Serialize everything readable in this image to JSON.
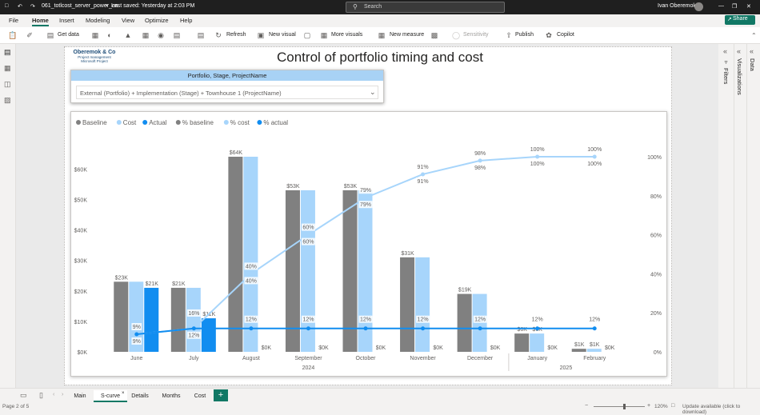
{
  "titlebar": {
    "filename": "061_totlcost_server_power_en",
    "saved": "Last saved: Yesterday at 2:03 PM",
    "search_placeholder": "Search",
    "user": "Ivan Oberemok"
  },
  "menu": [
    "File",
    "Home",
    "Insert",
    "Modeling",
    "View",
    "Optimize",
    "Help"
  ],
  "menu_active": "Home",
  "share_label": "Share",
  "ribbon": {
    "get_data": "Get data",
    "refresh": "Refresh",
    "new_visual": "New visual",
    "more_visuals": "More visuals",
    "new_measure": "New measure",
    "sensitivity": "Sensitivity",
    "publish": "Publish",
    "copilot": "Copilot"
  },
  "right_panes": {
    "filters": "Filters",
    "visualizations": "Visualizations",
    "data": "Data"
  },
  "logo": {
    "name": "Oberemok & Co",
    "line1": "Project management",
    "line2": "Microsoft Project"
  },
  "report_title": "Control of portfolio timing and cost",
  "slicer": {
    "header": "Portfolio, Stage, ProjectName",
    "value": "External (Portfolio) + Implementation (Stage) + Townhouse 1 (ProjectName)"
  },
  "tabs": [
    "Main",
    "S-curve",
    "Details",
    "Months",
    "Cost"
  ],
  "active_tab": "S-curve",
  "status": {
    "page": "Page 2 of 5",
    "zoom": "120%",
    "update": "Update available (click to download)"
  },
  "colors": {
    "baseline": "#808080",
    "cost": "#a7d5fb",
    "actual": "#118df0",
    "accent": "#117865"
  },
  "chart_data": {
    "type": "bar",
    "legend": [
      "Baseline",
      "Cost",
      "Actual",
      "% baseline",
      "% cost",
      "% actual"
    ],
    "categories": [
      "June",
      "July",
      "August",
      "September",
      "October",
      "November",
      "December",
      "January",
      "February"
    ],
    "year_groups": [
      {
        "label": "2024",
        "from": 0,
        "to": 6
      },
      {
        "label": "2025",
        "from": 7,
        "to": 8
      }
    ],
    "series": [
      {
        "name": "Baseline",
        "values": [
          23,
          21,
          64,
          53,
          53,
          31,
          19,
          6,
          1
        ],
        "labels": [
          "$23K",
          "$21K",
          "$64K",
          "$53K",
          "$53K",
          "$31K",
          "$19K",
          "$6K",
          "$1K"
        ]
      },
      {
        "name": "Cost",
        "values": [
          23,
          21,
          64,
          53,
          53,
          31,
          19,
          6,
          1
        ],
        "labels": [
          "",
          "",
          "",
          "",
          "",
          "",
          "",
          "$6K",
          "$1K"
        ]
      },
      {
        "name": "Actual",
        "values": [
          21,
          11,
          0,
          0,
          0,
          0,
          0,
          0,
          0
        ],
        "labels": [
          "$21K",
          "$11K",
          "$0K",
          "$0K",
          "$0K",
          "$0K",
          "$0K",
          "$0K",
          "$0K"
        ]
      }
    ],
    "percent_series": [
      {
        "name": "% baseline",
        "values": [
          9,
          16,
          40,
          60,
          79,
          91,
          98,
          100,
          100
        ],
        "labels": [
          "9%",
          "16%",
          "40%",
          "60%",
          "79%",
          "91%",
          "98%",
          "100%",
          "100%"
        ]
      },
      {
        "name": "% cost",
        "values": [
          9,
          12,
          40,
          60,
          79,
          91,
          98,
          100,
          100
        ],
        "labels": [
          "9%",
          "12%",
          "40%",
          "60%",
          "79%",
          "91%",
          "98%",
          "100%",
          "100%"
        ]
      },
      {
        "name": "% actual",
        "values": [
          9,
          12,
          12,
          12,
          12,
          12,
          12,
          12,
          12
        ],
        "labels": [
          "",
          "",
          "12%",
          "12%",
          "12%",
          "12%",
          "12%",
          "12%",
          "12%"
        ]
      }
    ],
    "y_left": {
      "ticks": [
        "$0K",
        "$10K",
        "$20K",
        "$30K",
        "$40K",
        "$50K",
        "$60K"
      ],
      "max": 64
    },
    "y_right": {
      "ticks": [
        "0%",
        "20%",
        "40%",
        "60%",
        "80%",
        "100%"
      ],
      "max": 100
    }
  }
}
